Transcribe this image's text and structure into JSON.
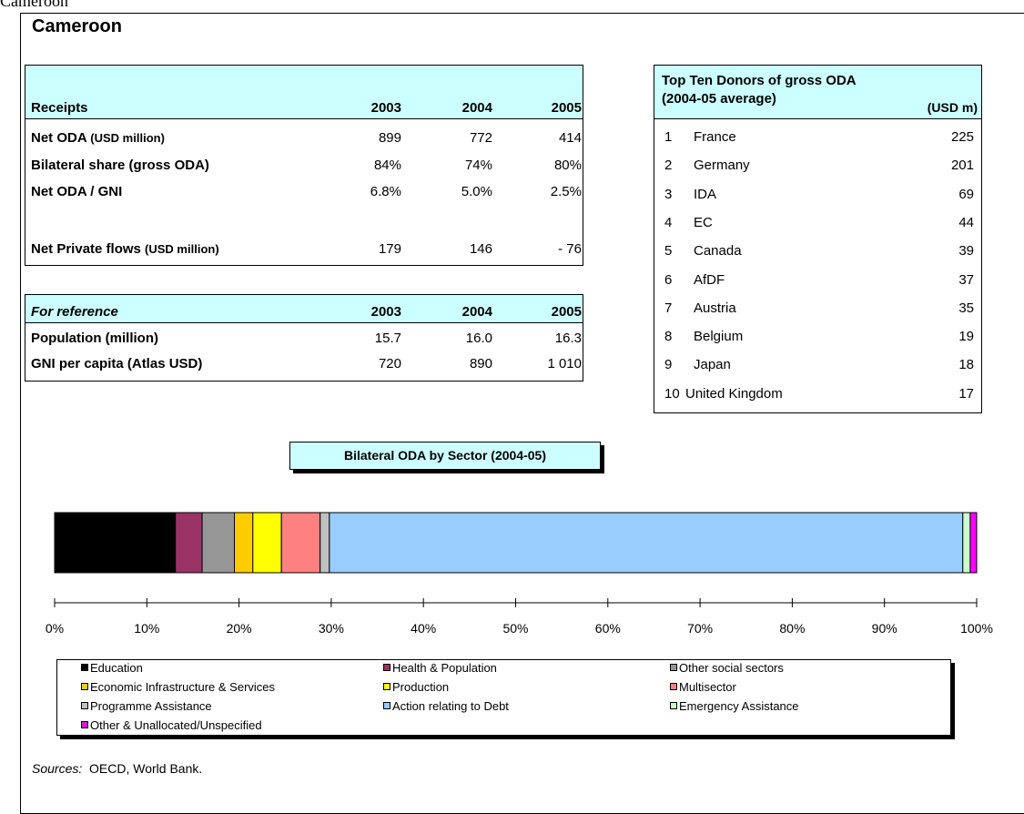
{
  "page_label": "Cameroon",
  "title": "Cameroon",
  "receipts": {
    "header": [
      "Receipts",
      "2003",
      "2004",
      "2005"
    ],
    "rows": [
      {
        "label": "Net ODA",
        "unit": "(USD million)",
        "values": [
          "899",
          "772",
          "414"
        ]
      },
      {
        "label": "Bilateral share (gross ODA)",
        "values": [
          "84%",
          "74%",
          "80%"
        ]
      },
      {
        "label": "Net ODA / GNI",
        "values": [
          "6.8%",
          "5.0%",
          "2.5%"
        ]
      },
      {
        "label": "Net Private flows",
        "unit": "(USD million)",
        "values": [
          "179",
          "146",
          "- 76"
        ]
      }
    ]
  },
  "reference": {
    "header": [
      "For reference",
      "2003",
      "2004",
      "2005"
    ],
    "rows": [
      {
        "label": "Population (million)",
        "values": [
          "15.7",
          "16.0",
          "16.3"
        ]
      },
      {
        "label": "GNI per capita (Atlas USD)",
        "values": [
          "720",
          "890",
          "1 010"
        ]
      }
    ]
  },
  "donors": {
    "title": "Top Ten Donors of gross ODA (2004-05 average)",
    "unit": "(USD m)",
    "rows": [
      [
        "1",
        "France",
        "225"
      ],
      [
        "2",
        "Germany",
        "201"
      ],
      [
        "3",
        "IDA",
        "69"
      ],
      [
        "4",
        "EC",
        "44"
      ],
      [
        "5",
        "Canada",
        "39"
      ],
      [
        "6",
        "AfDF",
        "37"
      ],
      [
        "7",
        "Austria",
        "35"
      ],
      [
        "8",
        "Belgium",
        "19"
      ],
      [
        "9",
        "Japan",
        "18"
      ],
      [
        "10",
        "United Kingdom",
        "17"
      ]
    ]
  },
  "chart_data": {
    "type": "stacked_bar",
    "title": "Bilateral ODA by Sector (2004-05)",
    "series": [
      {
        "name": "Education",
        "color": "#000000",
        "values": [
          13.1
        ]
      },
      {
        "name": "Health & Population",
        "color": "#993366",
        "values": [
          2.9
        ]
      },
      {
        "name": "Other social sectors",
        "color": "#969696",
        "values": [
          3.5
        ]
      },
      {
        "name": "Economic Infrastructure & Services",
        "color": "#ffcc00",
        "values": [
          2.0
        ]
      },
      {
        "name": "Production",
        "color": "#ffff00",
        "values": [
          3.1
        ]
      },
      {
        "name": "Multisector",
        "color": "#ff8080",
        "values": [
          4.2
        ]
      },
      {
        "name": "Programme Assistance",
        "color": "#c0c0c0",
        "values": [
          1.0
        ]
      },
      {
        "name": "Action relating to Debt",
        "color": "#99ccff",
        "values": [
          68.7
        ]
      },
      {
        "name": "Emergency Assistance",
        "color": "#ccffcc",
        "values": [
          0.8
        ]
      },
      {
        "name": "Other & Unallocated/Unspecified",
        "color": "#ff00ff",
        "values": [
          0.7
        ]
      }
    ],
    "xlim": [
      0,
      100
    ],
    "xticks": [
      {
        "value": 0,
        "label": "0%"
      },
      {
        "value": 10,
        "label": "10%"
      },
      {
        "value": 20,
        "label": "20%"
      },
      {
        "value": 30,
        "label": "30%"
      },
      {
        "value": 40,
        "label": "40%"
      },
      {
        "value": 50,
        "label": "50%"
      },
      {
        "value": 60,
        "label": "60%"
      },
      {
        "value": 70,
        "label": "70%"
      },
      {
        "value": 80,
        "label": "80%"
      },
      {
        "value": 90,
        "label": "90%"
      },
      {
        "value": 100,
        "label": "100%"
      }
    ]
  },
  "sources": {
    "label": "Sources:",
    "text": "OECD, World Bank."
  }
}
